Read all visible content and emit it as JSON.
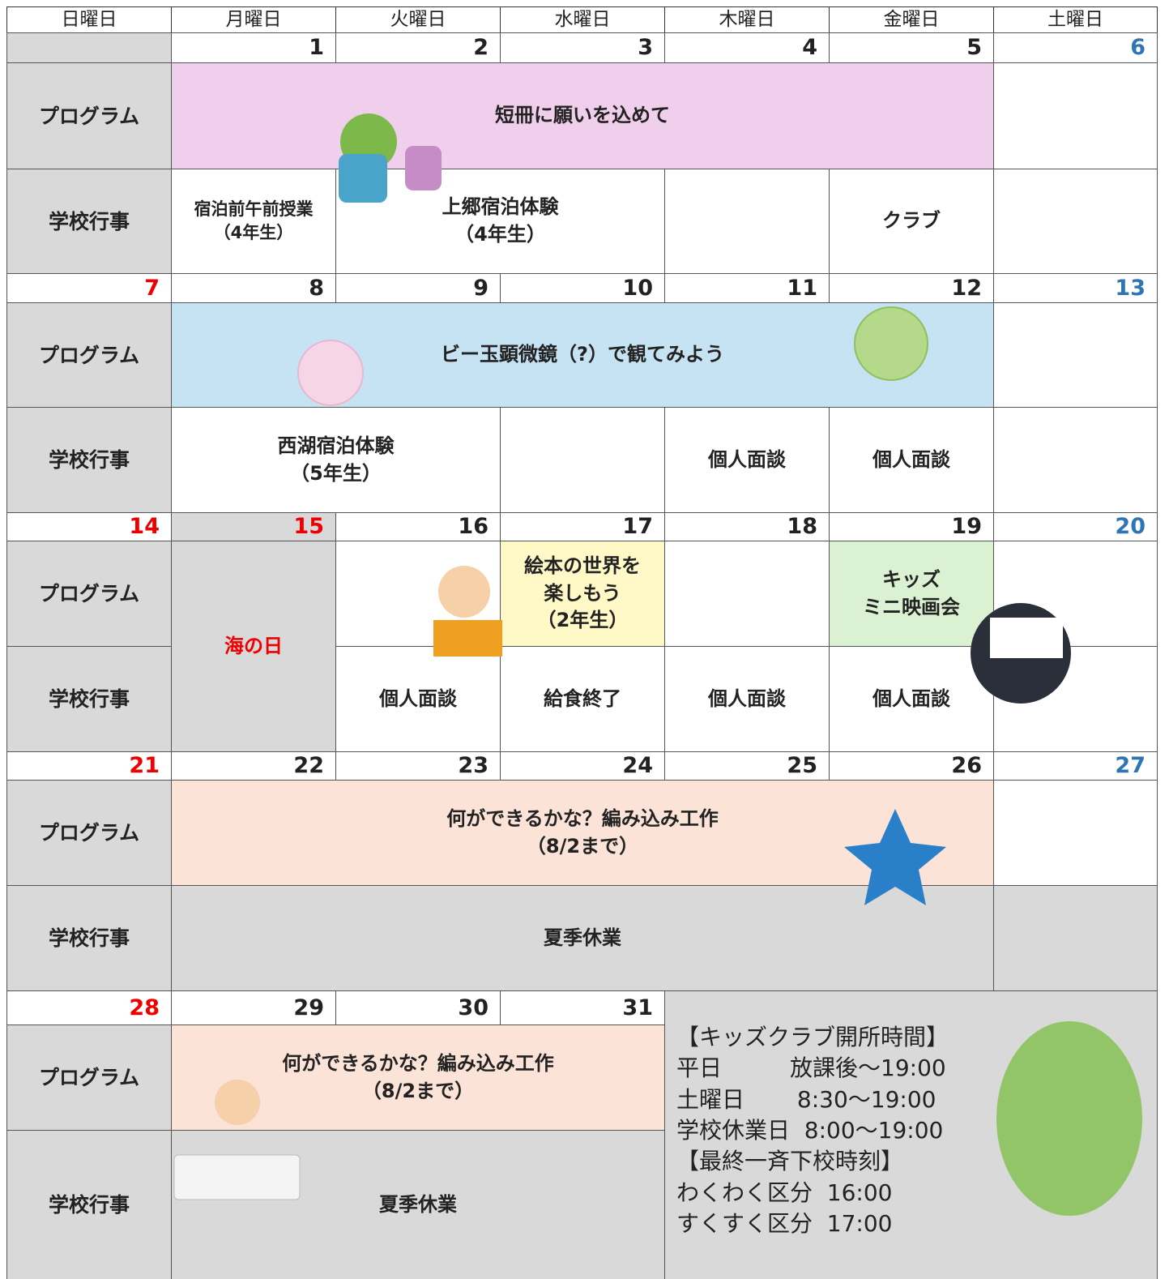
{
  "header": {
    "days": [
      "日曜日",
      "月曜日",
      "火曜日",
      "水曜日",
      "木曜日",
      "金曜日",
      "土曜日"
    ]
  },
  "row_labels": {
    "program": "プログラム",
    "school": "学校行事"
  },
  "weeks": [
    {
      "dates": [
        1,
        2,
        3,
        4,
        5,
        6
      ],
      "program": [
        "短冊に願いを込めて"
      ],
      "school": [
        "宿泊前午前授業\n（4年生）",
        "上郷宿泊体験\n（4年生）",
        "クラブ"
      ]
    },
    {
      "dates": [
        7,
        8,
        9,
        10,
        11,
        12,
        13
      ],
      "program": [
        "ビー玉顕微鏡（?）で観てみよう"
      ],
      "school": [
        "西湖宿泊体験\n（5年生）",
        "個人面談",
        "個人面談"
      ]
    },
    {
      "dates": [
        14,
        15,
        16,
        17,
        18,
        19,
        20
      ],
      "holiday": "海の日",
      "program": [
        "絵本の世界を\n楽しもう\n（2年生）",
        "キッズ\nミニ映画会"
      ],
      "school": [
        "個人面談",
        "給食終了",
        "個人面談",
        "個人面談"
      ]
    },
    {
      "dates": [
        21,
        22,
        23,
        24,
        25,
        26,
        27
      ],
      "program": [
        "何ができるかな？編み込み工作\n（8/2まで）"
      ],
      "school": [
        "夏季休業"
      ]
    },
    {
      "dates": [
        28,
        29,
        30,
        31
      ],
      "program": [
        "何ができるかな？編み込み工作\n（8/2まで）"
      ],
      "school": [
        "夏季休業"
      ]
    }
  ],
  "info": {
    "lines": [
      "【キッズクラブ開所時間】",
      "平日　　　放課後～19:00",
      "土曜日　　 8:30～19:00",
      "学校休業日  8:00～19:00",
      "【最終一斉下校時刻】",
      "わくわく区分  16:00",
      "すくすく区分  17:00"
    ]
  }
}
